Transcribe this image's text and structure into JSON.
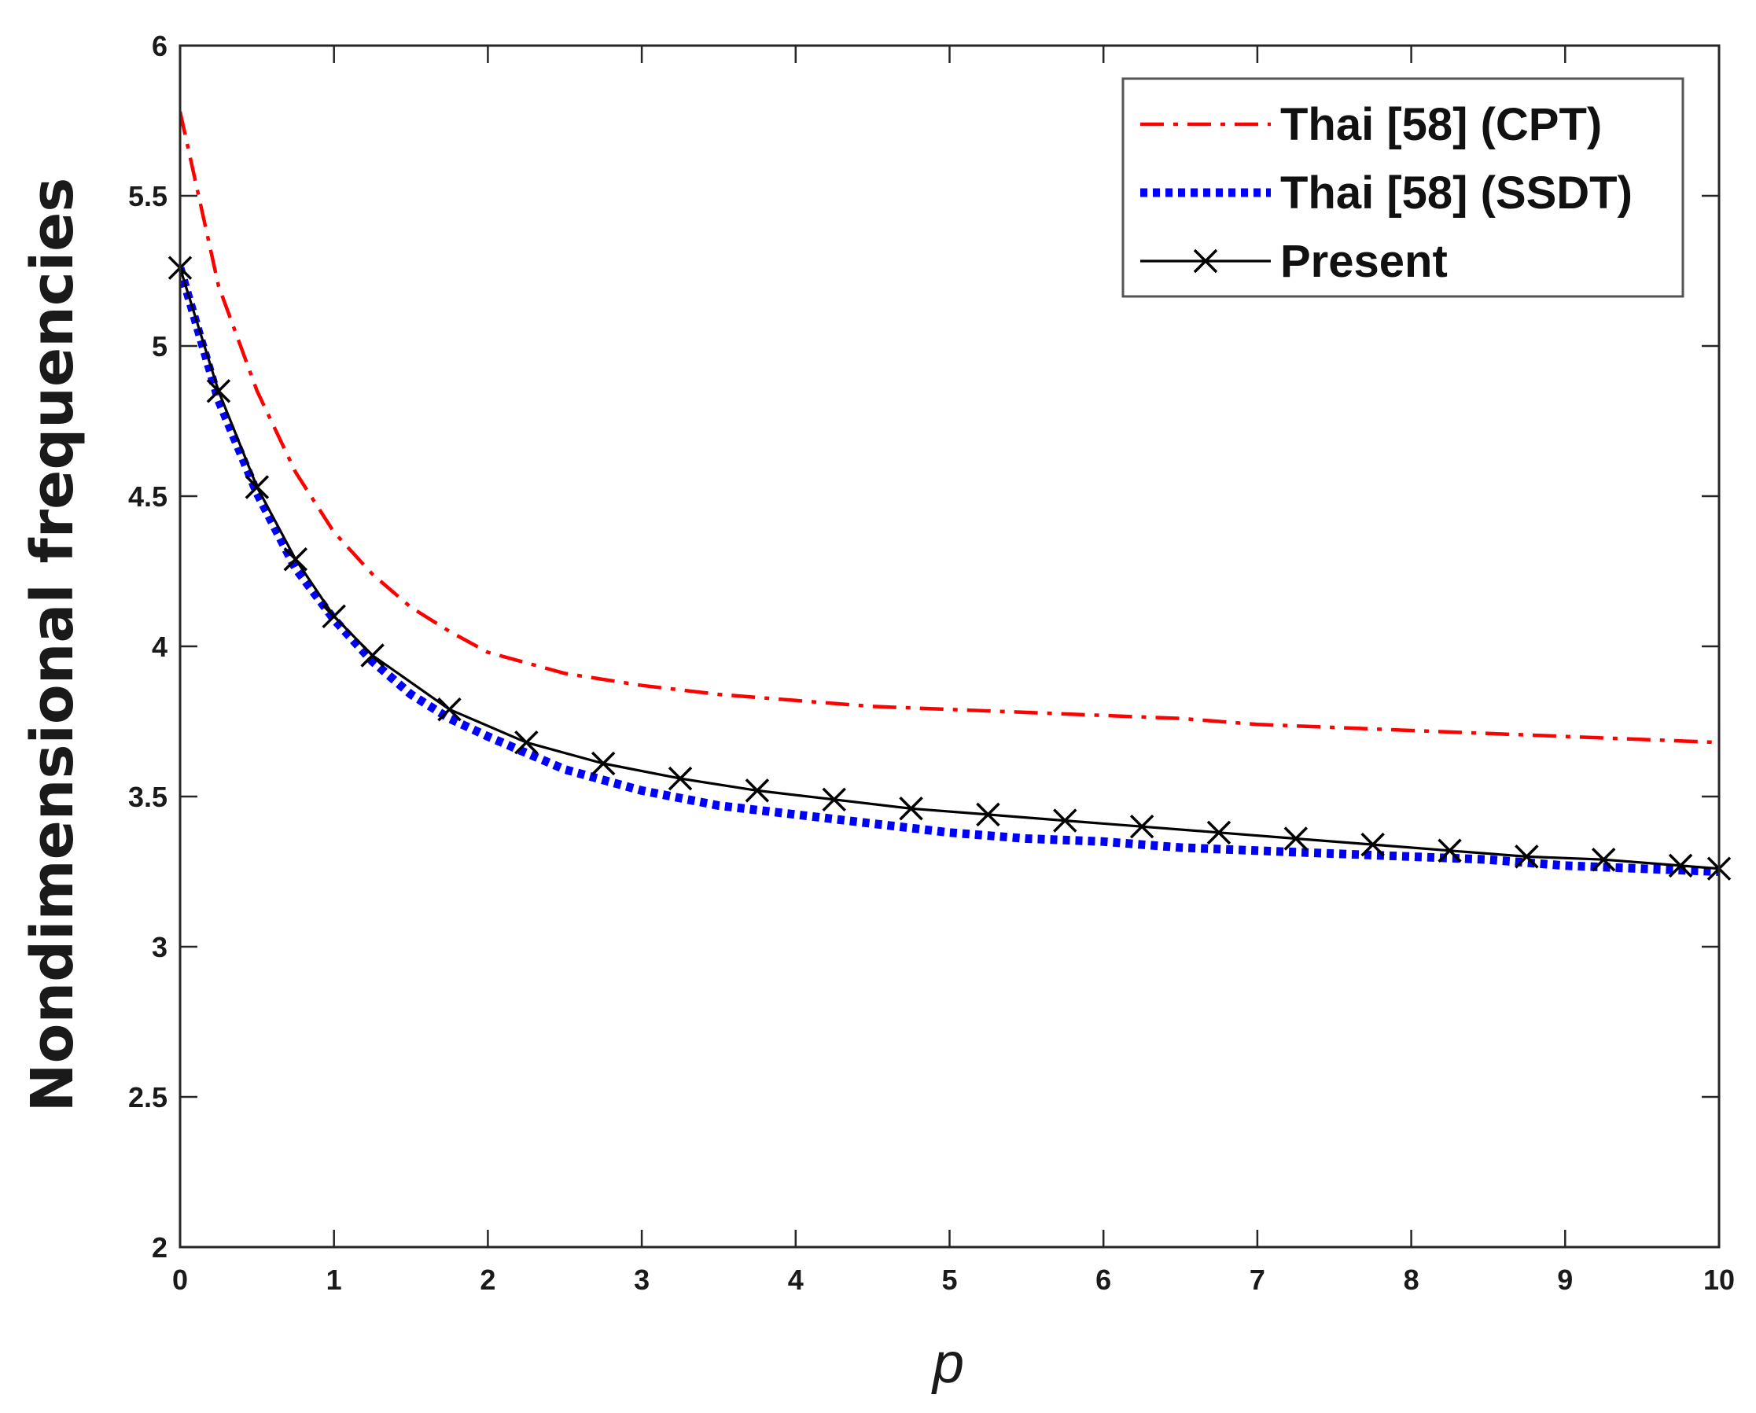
{
  "chart_data": {
    "type": "line",
    "title": "",
    "xlabel": "p",
    "ylabel": "Nondimensional frequencies",
    "xlim": [
      0,
      10
    ],
    "ylim": [
      2,
      6
    ],
    "xticks": [
      0,
      1,
      2,
      3,
      4,
      5,
      6,
      7,
      8,
      9,
      10
    ],
    "yticks": [
      2,
      2.5,
      3,
      3.5,
      4,
      4.5,
      5,
      5.5,
      6
    ],
    "xtick_labels": [
      "0",
      "1",
      "2",
      "3",
      "4",
      "5",
      "6",
      "7",
      "8",
      "9",
      "10"
    ],
    "ytick_labels": [
      "2",
      "2.5",
      "3",
      "3.5",
      "4",
      "4.5",
      "5",
      "5.5",
      "6"
    ],
    "grid": false,
    "legend_position": "top-right",
    "series": [
      {
        "name": "Thai [58] (CPT)",
        "color": "#ff0000",
        "line_style": "dash-dot",
        "marker": "none",
        "x": [
          0,
          0.25,
          0.5,
          0.75,
          1,
          1.25,
          1.5,
          1.75,
          2,
          2.5,
          3,
          3.5,
          4,
          4.5,
          5,
          5.5,
          6,
          6.5,
          7,
          7.5,
          8,
          8.5,
          9,
          9.5,
          10
        ],
        "y": [
          5.78,
          5.2,
          4.85,
          4.58,
          4.38,
          4.24,
          4.13,
          4.05,
          3.98,
          3.91,
          3.87,
          3.84,
          3.82,
          3.8,
          3.79,
          3.78,
          3.77,
          3.76,
          3.74,
          3.73,
          3.72,
          3.71,
          3.7,
          3.69,
          3.68
        ]
      },
      {
        "name": "Thai [58] (SSDT)",
        "color": "#0000ff",
        "line_style": "dotted",
        "marker": "none",
        "x": [
          0,
          0.25,
          0.5,
          0.75,
          1,
          1.25,
          1.5,
          1.75,
          2,
          2.5,
          3,
          3.5,
          4,
          4.5,
          5,
          5.5,
          6,
          6.5,
          7,
          7.5,
          8,
          8.5,
          9,
          9.5,
          10
        ],
        "y": [
          5.26,
          4.82,
          4.51,
          4.26,
          4.09,
          3.95,
          3.84,
          3.76,
          3.7,
          3.59,
          3.52,
          3.47,
          3.44,
          3.41,
          3.38,
          3.36,
          3.35,
          3.33,
          3.32,
          3.31,
          3.3,
          3.29,
          3.27,
          3.26,
          3.25
        ]
      },
      {
        "name": "Present",
        "color": "#000000",
        "line_style": "solid",
        "marker": "x",
        "x": [
          0,
          0.25,
          0.5,
          0.75,
          1,
          1.25,
          1.75,
          2.25,
          2.75,
          3.25,
          3.75,
          4.25,
          4.75,
          5.25,
          5.75,
          6.25,
          6.75,
          7.25,
          7.75,
          8.25,
          8.75,
          9.25,
          9.75,
          10
        ],
        "y": [
          5.26,
          4.85,
          4.53,
          4.29,
          4.1,
          3.97,
          3.79,
          3.68,
          3.61,
          3.56,
          3.52,
          3.49,
          3.46,
          3.44,
          3.42,
          3.4,
          3.38,
          3.36,
          3.34,
          3.32,
          3.3,
          3.29,
          3.27,
          3.26
        ]
      }
    ]
  }
}
